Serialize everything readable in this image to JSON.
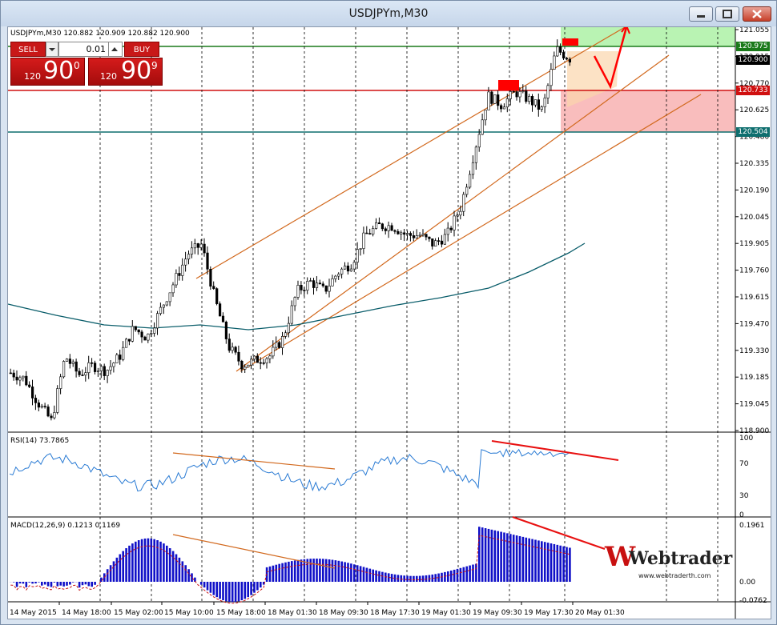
{
  "window": {
    "title": "USDJPYm,M30"
  },
  "header": {
    "symbol_info": "USDJPYm,M30  120.882 120.909 120.882 120.900"
  },
  "trade_panel": {
    "sell_label": "SELL",
    "buy_label": "BUY",
    "lot_value": "0.01",
    "sell_price_prefix": "120",
    "sell_price_main": "90",
    "sell_price_sup": "0",
    "buy_price_prefix": "120",
    "buy_price_main": "90",
    "buy_price_sup": "9"
  },
  "price_axis": {
    "ticks": [
      "121.055",
      "120.915",
      "120.770",
      "120.625",
      "120.480",
      "120.335",
      "120.190",
      "120.045",
      "119.905",
      "119.760",
      "119.615",
      "119.470",
      "119.330",
      "119.185",
      "119.045",
      "118.900"
    ],
    "markers": [
      {
        "label": "120.975",
        "color": "#1a7a1a"
      },
      {
        "label": "120.900",
        "color": "#000000"
      },
      {
        "label": "120.733",
        "color": "#d01010"
      },
      {
        "label": "120.504",
        "color": "#0e6e6e"
      }
    ]
  },
  "rsi": {
    "label": "RSI(14) 73.7865",
    "ticks": [
      "100",
      "70",
      "30",
      "0"
    ]
  },
  "macd": {
    "label": "MACD(12,26,9) 0.1213 0.1169",
    "ticks": [
      "0.1961",
      "0.00",
      "-0.0762"
    ]
  },
  "time_axis": {
    "labels": [
      "14 May 2015",
      "14 May 18:00",
      "15 May 02:00",
      "15 May 10:00",
      "15 May 18:00",
      "18 May 01:30",
      "18 May 09:30",
      "18 May 17:30",
      "19 May 01:30",
      "19 May 09:30",
      "19 May 17:30",
      "20 May 01:30"
    ]
  },
  "watermark": {
    "brand": "Webtrader",
    "url": "www.webtraderth.com"
  },
  "colors": {
    "bull": "#000000",
    "bear": "#000000",
    "ma": "#0b5e6b",
    "channel": "#d2691e",
    "macd": "#1010c8",
    "rsi": "#2a7bd4",
    "divergence": "#e81010"
  },
  "chart_data": {
    "type": "candlestick",
    "close_path_sample": [
      119.21,
      119.18,
      119.05,
      118.95,
      119.3,
      119.2,
      119.25,
      119.22,
      119.3,
      119.45,
      119.4,
      119.55,
      119.7,
      119.85,
      119.9,
      119.6,
      119.35,
      119.25,
      119.28,
      119.3,
      119.4,
      119.65,
      119.7,
      119.65,
      119.75,
      119.8,
      119.95,
      120.0,
      120.0,
      119.95,
      119.95,
      119.9,
      119.95,
      120.1,
      120.4,
      120.7,
      120.65,
      120.72,
      120.68,
      120.62,
      120.95,
      120.9
    ],
    "ylim": [
      118.9,
      121.055
    ]
  }
}
